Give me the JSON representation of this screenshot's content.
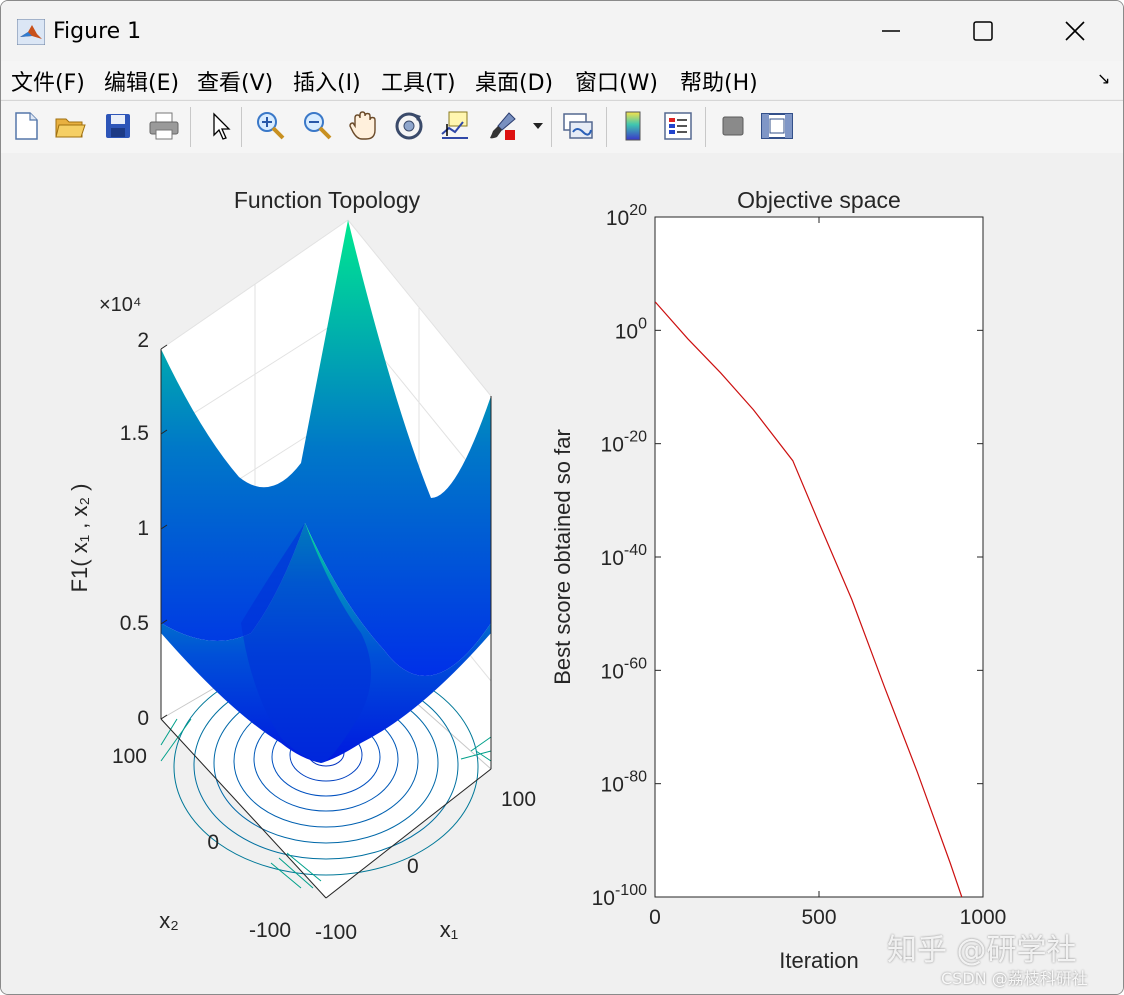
{
  "window": {
    "title": "Figure 1"
  },
  "menu": [
    {
      "label": "文件(F)"
    },
    {
      "label": "编辑(E)"
    },
    {
      "label": "查看(V)"
    },
    {
      "label": "插入(I)"
    },
    {
      "label": "工具(T)"
    },
    {
      "label": "桌面(D)"
    },
    {
      "label": "窗口(W)"
    },
    {
      "label": "帮助(H)"
    }
  ],
  "toolbar": [
    {
      "icon": "new-figure-icon"
    },
    {
      "icon": "open-file-icon"
    },
    {
      "icon": "save-icon"
    },
    {
      "icon": "print-icon"
    },
    {
      "icon": "pointer-icon"
    },
    {
      "icon": "zoom-in-icon"
    },
    {
      "icon": "zoom-out-icon"
    },
    {
      "icon": "pan-hand-icon"
    },
    {
      "icon": "rotate-3d-icon"
    },
    {
      "icon": "data-cursor-icon"
    },
    {
      "icon": "brush-icon"
    },
    {
      "icon": "link-plot-icon"
    },
    {
      "icon": "colorbar-icon"
    },
    {
      "icon": "legend-icon"
    },
    {
      "icon": "hide-plot-tools-icon"
    },
    {
      "icon": "show-plot-tools-icon"
    }
  ],
  "colors": {
    "surface_low": "#0011dd",
    "surface_high": "#00ee88",
    "curve": "#cc1010",
    "axes_bg": "#ffffff",
    "figure_bg": "#f0f0f0"
  },
  "chart_data": [
    {
      "type": "surface",
      "title": "Function Topology",
      "zlabel": "F1( x₁ , x₂ )",
      "xlabel": "x₁",
      "ylabel": "x₂",
      "z_exponent": "×10⁴",
      "zticks": [
        "0",
        "0.5",
        "1",
        "1.5",
        "2"
      ],
      "xticks": [
        "-100",
        "0",
        "100"
      ],
      "yticks": [
        "-100",
        "0",
        "100"
      ],
      "zlim": [
        0,
        20000
      ],
      "xlim": [
        -100,
        100
      ],
      "ylim": [
        -100,
        100
      ],
      "function": "x1^2 + x2^2",
      "contours_below": true
    },
    {
      "type": "line",
      "title": "Objective space",
      "xlabel": "Iteration",
      "ylabel": "Best score obtained so far",
      "xlim": [
        0,
        1000
      ],
      "xticks": [
        "0",
        "500",
        "1000"
      ],
      "yscale": "log",
      "ylim_exp": [
        -100,
        20
      ],
      "yticks": [
        {
          "base": "10",
          "exp": "20"
        },
        {
          "base": "10",
          "exp": "0"
        },
        {
          "base": "10",
          "exp": "-20"
        },
        {
          "base": "10",
          "exp": "-40"
        },
        {
          "base": "10",
          "exp": "-60"
        },
        {
          "base": "10",
          "exp": "-80"
        },
        {
          "base": "10",
          "exp": "-100"
        }
      ],
      "series": [
        {
          "x": [
            1,
            100,
            200,
            300,
            420,
            500,
            600,
            700,
            800,
            900,
            1000
          ],
          "log10_y": [
            5,
            -1.5,
            -7.5,
            -14,
            -23,
            -34,
            -47.5,
            -63,
            -78,
            -94,
            -111
          ]
        }
      ]
    }
  ],
  "watermark": {
    "line1": "知乎 @研学社",
    "line2": "CSDN @荔枝科研社"
  }
}
